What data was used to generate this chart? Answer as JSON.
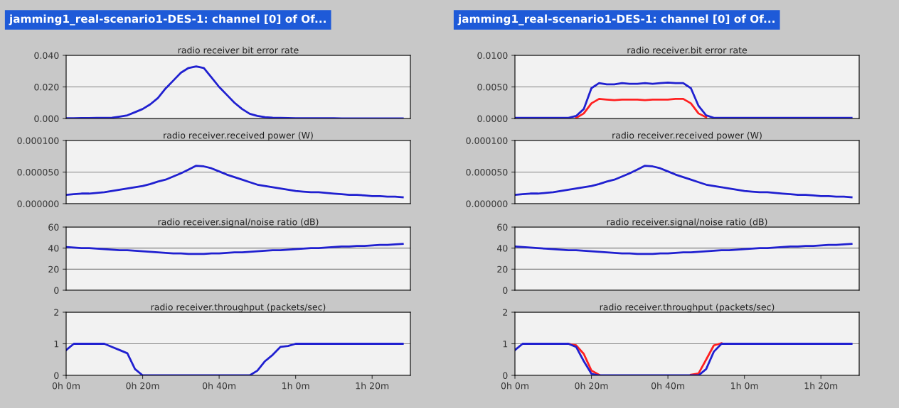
{
  "chart_data": [
    {
      "type": "line",
      "title": "radio receiver bit error rate",
      "annotations": [
        "jamming1_real-scenario1-DES-1: channel [0] of Of..."
      ],
      "categories": [
        null,
        null,
        null,
        null,
        null,
        null,
        null,
        null,
        null,
        null,
        null,
        null,
        null,
        null,
        null,
        null,
        null,
        null,
        null,
        null,
        null,
        null,
        null,
        null,
        null,
        null,
        null,
        null,
        null,
        null,
        null,
        null,
        null,
        null,
        null,
        null,
        null,
        null,
        null,
        null,
        null,
        null,
        null,
        null,
        null,
        null
      ],
      "ylim": [
        0,
        0.04
      ],
      "yticks": [
        {
          "value": 0,
          "label": "0.000"
        },
        {
          "value": 0.02,
          "label": "0.020"
        },
        {
          "value": 0.04,
          "label": "0.040"
        }
      ],
      "tick_labels": "y",
      "grid": "y",
      "series": [
        {
          "color": "#2020d0",
          "values": [
            0.0002,
            0.0002,
            0.0003,
            0.0003,
            0.0004,
            0.0004,
            0.0005,
            0.0012,
            0.002,
            0.004,
            0.006,
            0.009,
            0.013,
            0.019,
            0.024,
            0.029,
            0.032,
            0.033,
            0.032,
            0.026,
            0.02,
            0.015,
            0.01,
            0.006,
            0.003,
            0.0016,
            0.0008,
            0.0005,
            0.0004,
            0.0003,
            0.0002,
            0.0002,
            0.0002,
            0.0002,
            0.0002,
            0.0002,
            0.0001,
            0.0001,
            0.0001,
            0.0001,
            0.0001,
            0.0001,
            0.0001,
            0.0001,
            0.0001,
            null
          ]
        }
      ]
    },
    {
      "type": "line",
      "title": "radio receiver.received power (W)",
      "categories": [
        null,
        null,
        null,
        null,
        null,
        null,
        null,
        null,
        null,
        null,
        null,
        null,
        null,
        null,
        null,
        null,
        null,
        null,
        null,
        null,
        null,
        null,
        null,
        null,
        null,
        null,
        null,
        null,
        null,
        null,
        null,
        null,
        null,
        null,
        null,
        null,
        null,
        null,
        null,
        null,
        null,
        null,
        null,
        null,
        null,
        null
      ],
      "ylim": [
        0,
        0.0001
      ],
      "yticks": [
        {
          "value": 0,
          "label": "0.000000"
        },
        {
          "value": 5e-05,
          "label": "0.000050"
        },
        {
          "value": 0.0001,
          "label": "0.000100"
        }
      ],
      "tick_labels": "y",
      "grid": "y",
      "series": [
        {
          "color": "#2020d0",
          "values": [
            1.4e-05,
            1.5e-05,
            1.6e-05,
            1.6e-05,
            1.7e-05,
            1.8e-05,
            2e-05,
            2.2e-05,
            2.4e-05,
            2.6e-05,
            2.8e-05,
            3.1e-05,
            3.5e-05,
            3.8e-05,
            4.3e-05,
            4.8e-05,
            5.4e-05,
            6e-05,
            5.9e-05,
            5.6e-05,
            5.1e-05,
            4.6e-05,
            4.2e-05,
            3.8e-05,
            3.4e-05,
            3e-05,
            2.8e-05,
            2.6e-05,
            2.4e-05,
            2.2e-05,
            2e-05,
            1.9e-05,
            1.8e-05,
            1.8e-05,
            1.7e-05,
            1.6e-05,
            1.5e-05,
            1.4e-05,
            1.4e-05,
            1.3e-05,
            1.2e-05,
            1.2e-05,
            1.1e-05,
            1.1e-05,
            1e-05,
            null
          ]
        }
      ]
    },
    {
      "type": "line",
      "title": "radio receiver.signal/noise ratio (dB)",
      "categories": [
        null,
        null,
        null,
        null,
        null,
        null,
        null,
        null,
        null,
        null,
        null,
        null,
        null,
        null,
        null,
        null,
        null,
        null,
        null,
        null,
        null,
        null,
        null,
        null,
        null,
        null,
        null,
        null,
        null,
        null,
        null,
        null,
        null,
        null,
        null,
        null,
        null,
        null,
        null,
        null,
        null,
        null,
        null,
        null,
        null,
        null
      ],
      "ylim": [
        0,
        60
      ],
      "yticks": [
        0,
        20,
        40,
        60
      ],
      "tick_labels": "y",
      "grid": "y",
      "series": [
        {
          "color": "#2020d0",
          "values": [
            41,
            40.5,
            40,
            40,
            39.5,
            39,
            38.5,
            38,
            38,
            37.5,
            37,
            36.5,
            36,
            35.5,
            35,
            35,
            34.5,
            34.5,
            34.5,
            35,
            35,
            35.5,
            36,
            36,
            36.5,
            37,
            37.5,
            38,
            38,
            38.5,
            39,
            39.5,
            40,
            40,
            40.5,
            41,
            41.5,
            41.5,
            42,
            42,
            42.5,
            43,
            43,
            43.5,
            44,
            null
          ]
        }
      ]
    },
    {
      "type": "line",
      "title": "radio receiver.throughput (packets/sec)",
      "categories": [
        "0h 0m",
        null,
        null,
        null,
        null,
        null,
        null,
        null,
        null,
        null,
        "0h 20m",
        null,
        null,
        null,
        null,
        null,
        null,
        null,
        null,
        null,
        "0h 40m",
        null,
        null,
        null,
        null,
        null,
        null,
        null,
        null,
        null,
        "1h 0m",
        null,
        null,
        null,
        null,
        null,
        null,
        null,
        null,
        null,
        "1h 20m",
        null,
        null,
        null,
        null,
        null
      ],
      "ylim": [
        0,
        2
      ],
      "yticks": [
        0,
        1,
        2
      ],
      "grid": "y",
      "series": [
        {
          "color": "#2020d0",
          "values": [
            0.8,
            1,
            1,
            1,
            1,
            1,
            0.9,
            0.8,
            0.7,
            0.2,
            0,
            0,
            0,
            0,
            0,
            0,
            0,
            0,
            0,
            0,
            0,
            0,
            0,
            0,
            0,
            0.15,
            0.45,
            0.65,
            0.9,
            0.93,
            1,
            1,
            1,
            1,
            1,
            1,
            1,
            1,
            1,
            1,
            1,
            1,
            1,
            1,
            1,
            null
          ]
        }
      ]
    },
    {
      "type": "line",
      "title": "radio receiver.bit error rate",
      "annotations": [
        "jamming1_real-scenario1-DES-1: channel [0] of Of..."
      ],
      "categories": [
        null,
        null,
        null,
        null,
        null,
        null,
        null,
        null,
        null,
        null,
        null,
        null,
        null,
        null,
        null,
        null,
        null,
        null,
        null,
        null,
        null,
        null,
        null,
        null,
        null,
        null,
        null,
        null,
        null,
        null,
        null,
        null,
        null,
        null,
        null,
        null,
        null,
        null,
        null,
        null,
        null,
        null,
        null,
        null,
        null,
        null
      ],
      "ylim": [
        0,
        0.01
      ],
      "yticks": [
        {
          "value": 0,
          "label": "0.0000"
        },
        {
          "value": 0.005,
          "label": "0.0050"
        },
        {
          "value": 0.01,
          "label": "0.0100"
        }
      ],
      "tick_labels": "y",
      "grid": "y",
      "series": [
        {
          "color": "#ff2020",
          "values": [
            null,
            null,
            null,
            null,
            null,
            null,
            null,
            null,
            0.0001,
            0.0008,
            0.0024,
            0.0031,
            0.003,
            0.0029,
            0.003,
            0.003,
            0.003,
            0.0029,
            0.003,
            0.003,
            0.003,
            0.0031,
            0.0031,
            0.0024,
            0.0008,
            0.0002,
            null,
            null,
            null,
            null,
            null,
            null,
            null,
            null,
            null,
            null,
            null,
            null,
            null,
            null,
            null,
            null,
            null,
            null,
            null,
            null
          ]
        },
        {
          "color": "#2020d0",
          "values": [
            0.0001,
            0.0001,
            0.0001,
            0.0001,
            0.0001,
            0.0001,
            0.0001,
            0.0001,
            0.0004,
            0.0015,
            0.0048,
            0.0056,
            0.0054,
            0.0054,
            0.0056,
            0.0055,
            0.0055,
            0.0056,
            0.0055,
            0.0056,
            0.0057,
            0.0056,
            0.0056,
            0.0048,
            0.002,
            0.0005,
            0.0001,
            0.0001,
            0.0001,
            0.0001,
            0.0001,
            0.0001,
            0.0001,
            0.0001,
            0.0001,
            0.0001,
            0.0001,
            0.0001,
            0.0001,
            0.0001,
            0.0001,
            0.0001,
            0.0001,
            0.0001,
            0.0001,
            null
          ]
        }
      ]
    },
    {
      "type": "line",
      "title": "radio receiver.received power (W)",
      "categories": [
        null,
        null,
        null,
        null,
        null,
        null,
        null,
        null,
        null,
        null,
        null,
        null,
        null,
        null,
        null,
        null,
        null,
        null,
        null,
        null,
        null,
        null,
        null,
        null,
        null,
        null,
        null,
        null,
        null,
        null,
        null,
        null,
        null,
        null,
        null,
        null,
        null,
        null,
        null,
        null,
        null,
        null,
        null,
        null,
        null,
        null
      ],
      "ylim": [
        0,
        0.0001
      ],
      "yticks": [
        {
          "value": 0,
          "label": "0.000000"
        },
        {
          "value": 5e-05,
          "label": "0.000050"
        },
        {
          "value": 0.0001,
          "label": "0.000100"
        }
      ],
      "tick_labels": "y",
      "grid": "y",
      "series": [
        {
          "color": "#2020d0",
          "values": [
            1.4e-05,
            1.5e-05,
            1.6e-05,
            1.6e-05,
            1.7e-05,
            1.8e-05,
            2e-05,
            2.2e-05,
            2.4e-05,
            2.6e-05,
            2.8e-05,
            3.1e-05,
            3.5e-05,
            3.8e-05,
            4.3e-05,
            4.8e-05,
            5.4e-05,
            6e-05,
            5.9e-05,
            5.6e-05,
            5.1e-05,
            4.6e-05,
            4.2e-05,
            3.8e-05,
            3.4e-05,
            3e-05,
            2.8e-05,
            2.6e-05,
            2.4e-05,
            2.2e-05,
            2e-05,
            1.9e-05,
            1.8e-05,
            1.8e-05,
            1.7e-05,
            1.6e-05,
            1.5e-05,
            1.4e-05,
            1.4e-05,
            1.3e-05,
            1.2e-05,
            1.2e-05,
            1.1e-05,
            1.1e-05,
            1e-05,
            null
          ]
        }
      ]
    },
    {
      "type": "line",
      "title": "radio receiver.signal/noise ratio (dB)",
      "categories": [
        null,
        null,
        null,
        null,
        null,
        null,
        null,
        null,
        null,
        null,
        null,
        null,
        null,
        null,
        null,
        null,
        null,
        null,
        null,
        null,
        null,
        null,
        null,
        null,
        null,
        null,
        null,
        null,
        null,
        null,
        null,
        null,
        null,
        null,
        null,
        null,
        null,
        null,
        null,
        null,
        null,
        null,
        null,
        null,
        null,
        null
      ],
      "ylim": [
        0,
        60
      ],
      "yticks": [
        0,
        20,
        40,
        60
      ],
      "tick_labels": "y",
      "grid": "y",
      "series": [
        {
          "color": "#2020d0",
          "values": [
            41.5,
            41,
            40.5,
            40,
            39.5,
            39,
            38.5,
            38,
            38,
            37.5,
            37,
            36.5,
            36,
            35.5,
            35,
            35,
            34.5,
            34.5,
            34.5,
            35,
            35,
            35.5,
            36,
            36,
            36.5,
            37,
            37.5,
            38,
            38,
            38.5,
            39,
            39.5,
            40,
            40,
            40.5,
            41,
            41.5,
            41.5,
            42,
            42,
            42.5,
            43,
            43,
            43.5,
            44,
            null
          ]
        }
      ]
    },
    {
      "type": "line",
      "title": "radio receiver.throughput (packets/sec)",
      "categories": [
        "0h 0m",
        null,
        null,
        null,
        null,
        null,
        null,
        null,
        null,
        null,
        "0h 20m",
        null,
        null,
        null,
        null,
        null,
        null,
        null,
        null,
        null,
        "0h 40m",
        null,
        null,
        null,
        null,
        null,
        null,
        null,
        null,
        null,
        "1h 0m",
        null,
        null,
        null,
        null,
        null,
        null,
        null,
        null,
        null,
        "1h 20m",
        null,
        null,
        null,
        null,
        null
      ],
      "ylim": [
        0,
        2
      ],
      "yticks": [
        0,
        1,
        2
      ],
      "grid": "y",
      "series": [
        {
          "color": "#ff2020",
          "values": [
            null,
            null,
            null,
            null,
            null,
            null,
            null,
            1,
            0.95,
            0.68,
            0.15,
            0.02,
            null,
            null,
            null,
            null,
            null,
            null,
            null,
            null,
            null,
            null,
            null,
            0.02,
            0.06,
            0.5,
            0.95,
            1.02,
            null,
            null,
            null,
            null,
            null,
            null,
            null,
            null,
            null,
            null,
            null,
            null,
            null,
            null,
            null,
            null,
            null,
            null
          ]
        },
        {
          "color": "#2020d0",
          "values": [
            0.8,
            1,
            1,
            1,
            1,
            1,
            1,
            1,
            0.9,
            0.45,
            0.05,
            0,
            0,
            0,
            0,
            0,
            0,
            0,
            0,
            0,
            0,
            0,
            0,
            0,
            0,
            0.2,
            0.75,
            1,
            1,
            1,
            1,
            1,
            1,
            1,
            1,
            1,
            1,
            1,
            1,
            1,
            1,
            1,
            1,
            1,
            1,
            null
          ]
        }
      ]
    }
  ]
}
